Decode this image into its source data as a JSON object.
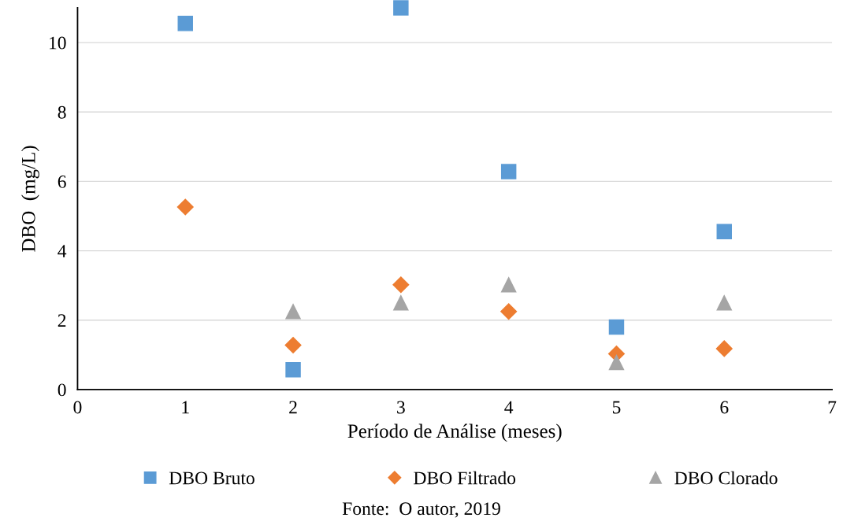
{
  "chart_data": {
    "type": "scatter",
    "xlabel": "Período de Análise (meses)",
    "ylabel": "DBO  (mg/L)",
    "x": [
      1,
      2,
      3,
      4,
      5,
      6
    ],
    "series": [
      {
        "name": "DBO Bruto",
        "color": "#5b9bd5",
        "marker": "square",
        "values": [
          10.55,
          0.57,
          11.0,
          6.28,
          1.8,
          4.55
        ]
      },
      {
        "name": "DBO Filtrado",
        "color": "#ed7d31",
        "marker": "diamond",
        "values": [
          5.26,
          1.28,
          3.02,
          2.25,
          1.03,
          1.18
        ]
      },
      {
        "name": "DBO Clorado",
        "color": "#a5a5a5",
        "marker": "triangle",
        "values": [
          null,
          2.25,
          2.5,
          3.02,
          0.78,
          2.5
        ]
      }
    ],
    "xlim": [
      0,
      7
    ],
    "xticks": [
      0,
      1,
      2,
      3,
      4,
      5,
      6,
      7
    ],
    "ylim": [
      0,
      11
    ],
    "yticks": [
      0,
      2,
      4,
      6,
      8,
      10
    ],
    "grid": "y",
    "legend": "bottom",
    "annotations": [
      "Fonte:  O autor, 2019"
    ]
  }
}
